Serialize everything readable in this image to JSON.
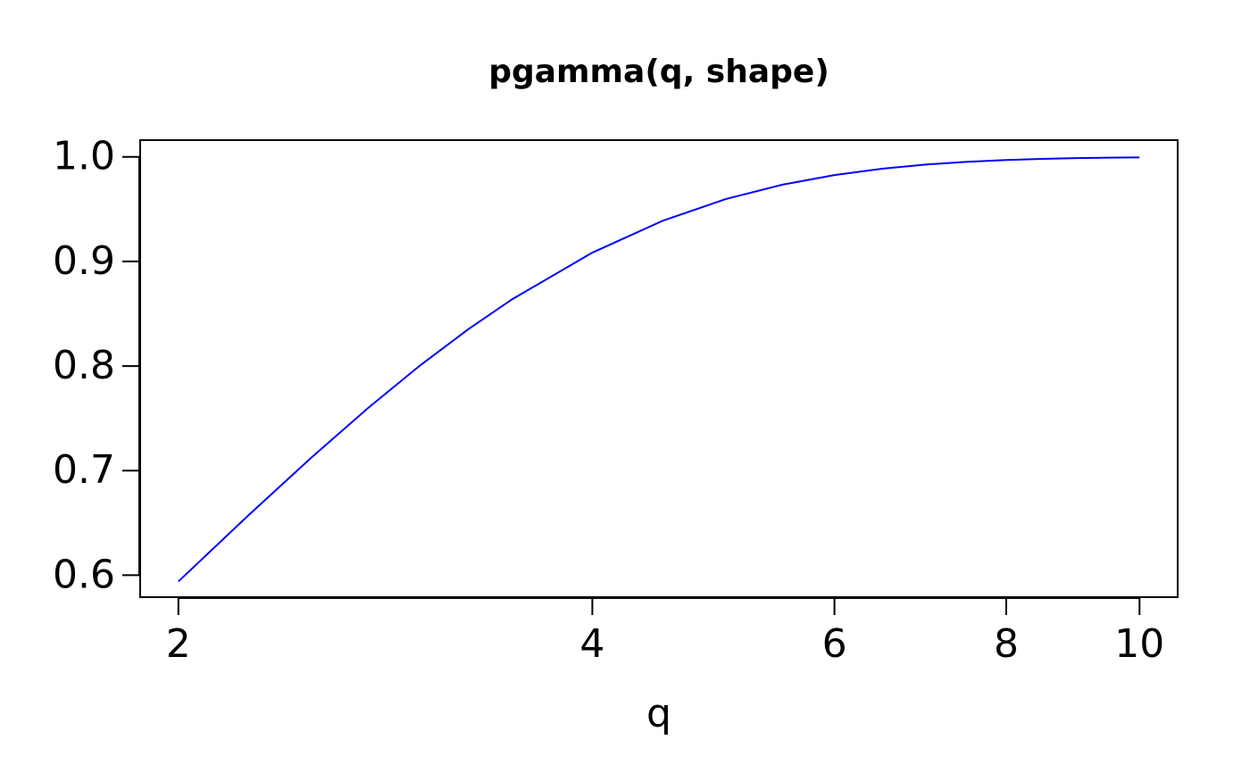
{
  "chart_data": {
    "type": "line",
    "title": "pgamma(q, shape)",
    "x_label": "q",
    "x": [
      2,
      2.25,
      2.5,
      2.75,
      3,
      3.25,
      3.5,
      4,
      4.5,
      5,
      5.5,
      6,
      6.5,
      7,
      7.5,
      8,
      8.5,
      9,
      9.5,
      10
    ],
    "values": [
      0.594,
      0.6575,
      0.7127,
      0.7603,
      0.8009,
      0.8352,
      0.8641,
      0.9084,
      0.9389,
      0.9596,
      0.9734,
      0.9826,
      0.9887,
      0.9927,
      0.9953,
      0.997,
      0.9981,
      0.9988,
      0.9992,
      0.9995
    ],
    "color": "blue",
    "xlog": true,
    "xlim": [
      1.876,
      10.66
    ],
    "ylim": [
      0.579,
      1.016
    ],
    "xticks": [
      2,
      4,
      6,
      8,
      10
    ],
    "yticks": [
      {
        "value": 0.6,
        "label": "0.6"
      },
      {
        "value": 0.7,
        "label": "0.7"
      },
      {
        "value": 0.8,
        "label": "0.8"
      },
      {
        "value": 0.9,
        "label": "0.9"
      },
      {
        "value": 1.0,
        "label": "1.0"
      }
    ]
  }
}
